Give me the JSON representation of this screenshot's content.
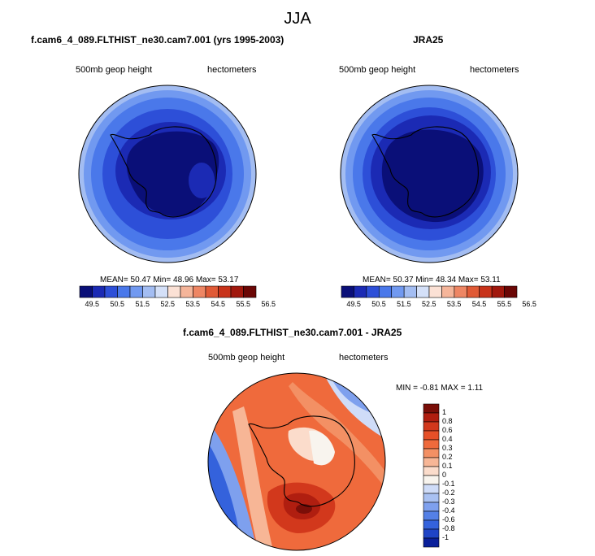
{
  "figure": {
    "title": "JJA"
  },
  "panels": {
    "left": {
      "title": "f.cam6_4_089.FLTHIST_ne30.cam7.001 (yrs 1995-2003)",
      "variable": "500mb geop height",
      "units": "hectometers",
      "stats": "MEAN=  50.47   Min=  48.96   Max=  53.17",
      "mean": 50.47,
      "min": 48.96,
      "max": 53.17
    },
    "right": {
      "title": "JRA25",
      "variable": "500mb geop height",
      "units": "hectometers",
      "stats": "MEAN=  50.37   Min=  48.34   Max=  53.11",
      "mean": 50.37,
      "min": 48.34,
      "max": 53.11
    },
    "diff": {
      "title": "f.cam6_4_089.FLTHIST_ne30.cam7.001 - JRA25",
      "variable": "500mb geop height",
      "units": "hectometers",
      "stats": "MIN =  -0.81  MAX =   1.11",
      "min": -0.81,
      "max": 1.11
    }
  },
  "colorbars": {
    "abs": {
      "ticks": [
        "49.5",
        "50.5",
        "51.5",
        "52.5",
        "53.5",
        "54.5",
        "55.5",
        "56.5"
      ],
      "colors": [
        "#0a0f78",
        "#1b2ab4",
        "#2d4fd8",
        "#4a78ea",
        "#7199f0",
        "#a3bdf2",
        "#d4e0f8",
        "#fbe1d5",
        "#f5b59a",
        "#ee8664",
        "#e05a36",
        "#c8331a",
        "#a1180d",
        "#6b0705"
      ]
    },
    "diff": {
      "ticks": [
        "1",
        "0.8",
        "0.6",
        "0.4",
        "0.3",
        "0.2",
        "0.1",
        "0",
        "-0.1",
        "-0.2",
        "-0.3",
        "-0.4",
        "-0.6",
        "-0.8",
        "-1"
      ],
      "colors": [
        "#7a0e08",
        "#b01e10",
        "#d2381c",
        "#e65028",
        "#ef6a3c",
        "#f39064",
        "#f7b696",
        "#fbdccb",
        "#f8f4ee",
        "#cfdcf8",
        "#a9c1f2",
        "#7ea0ee",
        "#5480e6",
        "#3462dc",
        "#1f44c6",
        "#0a1f9a"
      ]
    }
  }
}
